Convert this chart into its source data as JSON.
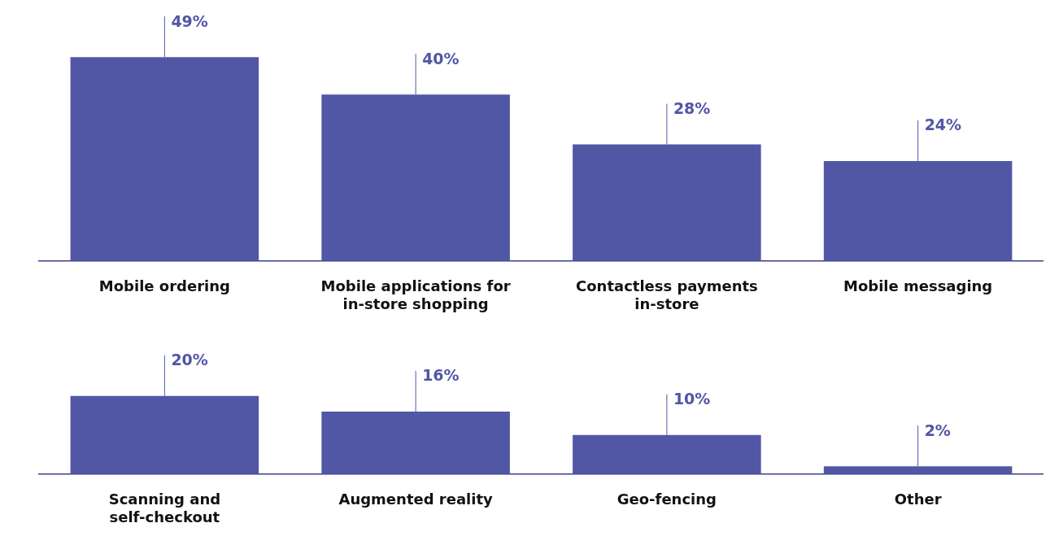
{
  "chart_data": [
    {
      "type": "bar",
      "categories": [
        "Mobile ordering",
        "Mobile applications for in-store shopping",
        "Contactless payments in-store",
        "Mobile messaging"
      ],
      "values": [
        49,
        40,
        28,
        24
      ],
      "color": "#5157a5",
      "value_labels": [
        "49%",
        "40%",
        "28%",
        "24%"
      ],
      "grid": false,
      "legend": false,
      "tick_labels": "x"
    },
    {
      "type": "bar",
      "categories": [
        "Scanning and self-checkout",
        "Augmented reality",
        "Geo-fencing",
        "Other"
      ],
      "values": [
        20,
        16,
        10,
        2
      ],
      "color": "#5157a5",
      "value_labels": [
        "20%",
        "16%",
        "10%",
        "2%"
      ],
      "grid": false,
      "legend": false,
      "tick_labels": "x"
    }
  ]
}
